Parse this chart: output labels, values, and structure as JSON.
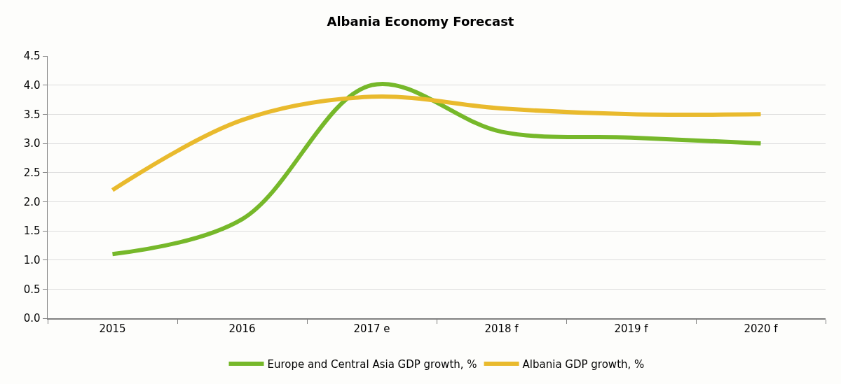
{
  "chart_data": {
    "type": "line",
    "title": "Albania Economy Forecast",
    "categories": [
      "2015",
      "2016",
      "2017 e",
      "2018 f",
      "2019 f",
      "2020 f"
    ],
    "series": [
      {
        "name": "Europe and Central Asia GDP growth, %",
        "color": "#76b82a",
        "values": [
          1.1,
          1.7,
          4.0,
          3.2,
          3.1,
          3.0
        ]
      },
      {
        "name": "Albania GDP growth, %",
        "color": "#e9ba2d",
        "values": [
          2.2,
          3.4,
          3.8,
          3.6,
          3.5,
          3.5
        ]
      }
    ],
    "ylim": [
      0,
      4.5
    ],
    "yticks": [
      {
        "value": 0,
        "label": "0.0"
      },
      0.5,
      {
        "value": 1,
        "label": "1.0"
      },
      1.5,
      {
        "value": 2,
        "label": "2.0"
      },
      2.5,
      {
        "value": 3,
        "label": "3.0"
      },
      3.5,
      {
        "value": 4,
        "label": "4.0"
      },
      4.5
    ],
    "grid": "y",
    "legend": "bottom",
    "marker": "none",
    "line_style": "solid"
  }
}
